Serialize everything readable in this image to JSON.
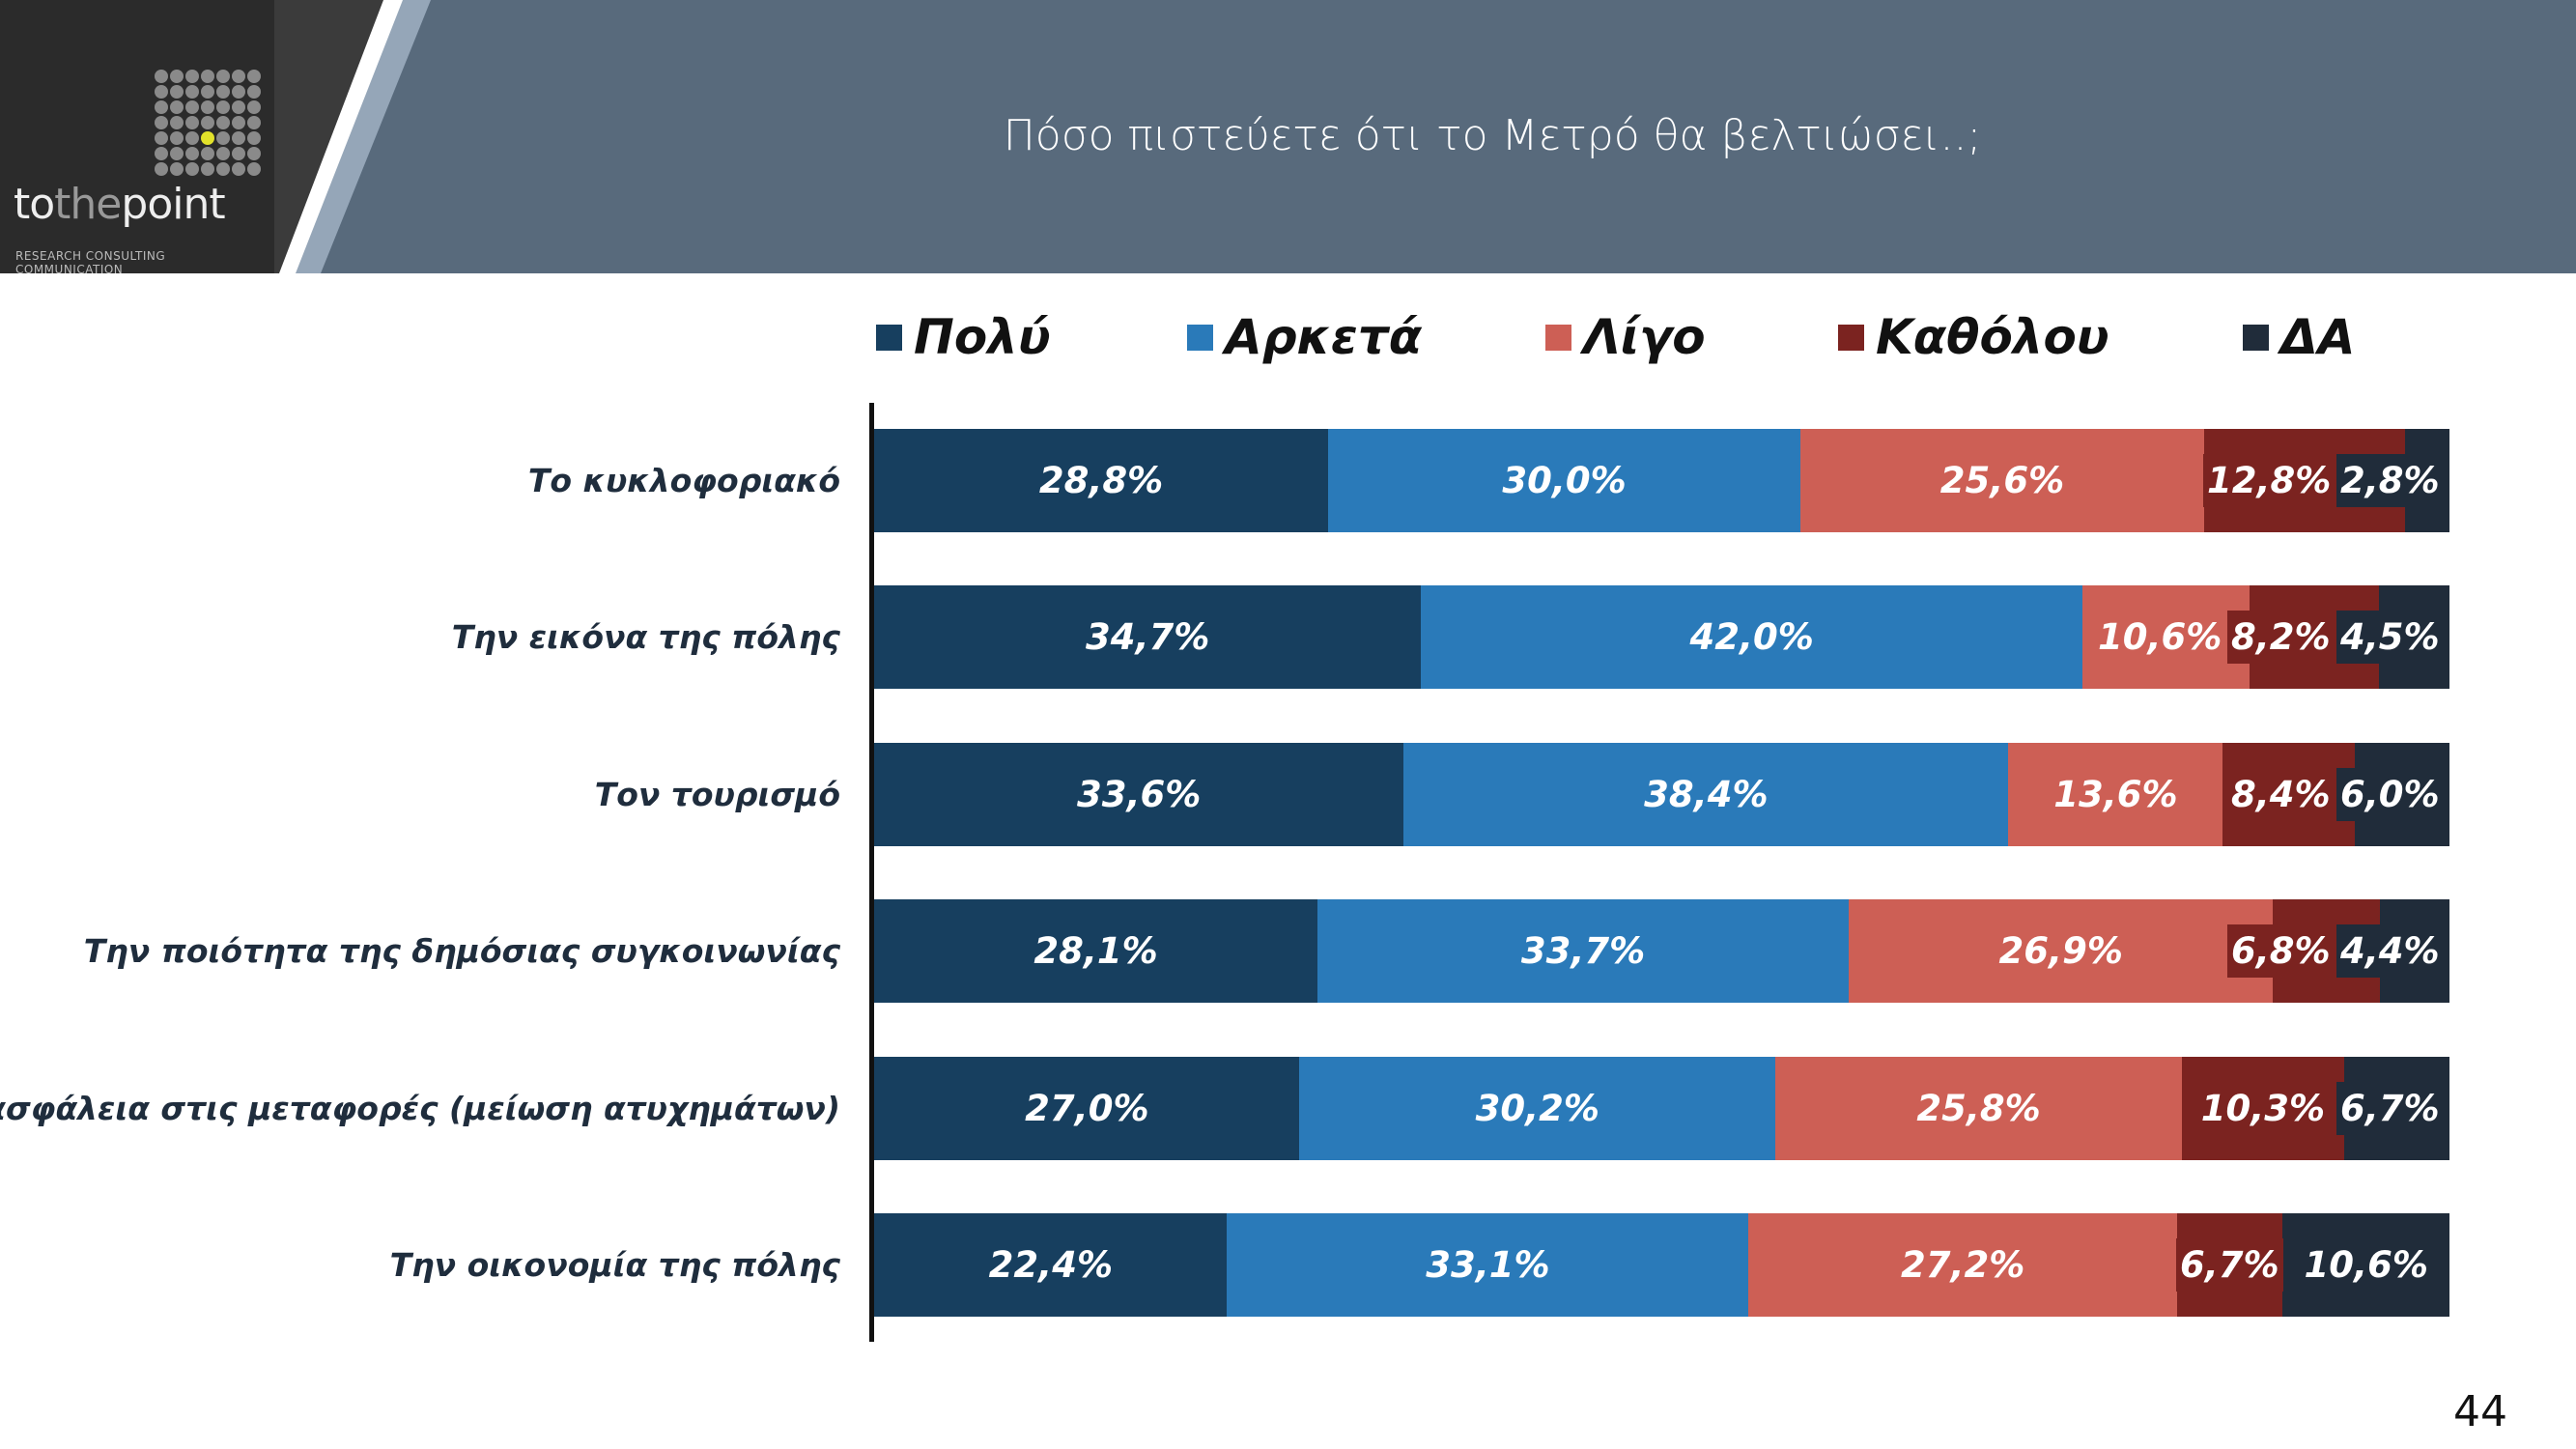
{
  "header": {
    "title": "Πόσο πιστεύετε ότι το Μετρό θα βελτιώσει..;",
    "logo_text": "tothepoint",
    "logo_tagline": "RESEARCH  CONSULTING  COMMUNICATION"
  },
  "page_number": "44",
  "chart_data": {
    "type": "bar",
    "orientation": "horizontal",
    "stacked": true,
    "xlim": [
      0,
      100
    ],
    "grid": false,
    "legend_position": "top",
    "title": "Πόσο πιστεύετε ότι το Μετρό θα βελτιώσει..;",
    "categories": [
      "Το κυκλοφοριακό",
      "Την εικόνα της πόλης",
      "Τον τουρισμό",
      "Την ποιότητα της δημόσιας συγκοινωνίας",
      "Την ασφάλεια στις μεταφορές (μείωση ατυχημάτων)",
      "Την οικονομία της πόλης"
    ],
    "series": [
      {
        "name": "Πολύ",
        "color": "#173f5f",
        "values": [
          28.8,
          34.7,
          33.6,
          28.1,
          27.0,
          22.4
        ],
        "labels": [
          "28,8%",
          "34,7%",
          "33,6%",
          "28,1%",
          "27,0%",
          "22,4%"
        ]
      },
      {
        "name": "Αρκετά",
        "color": "#2a7ab9",
        "values": [
          30.0,
          42.0,
          38.4,
          33.7,
          30.2,
          33.1
        ],
        "labels": [
          "30,0%",
          "42,0%",
          "38,4%",
          "33,7%",
          "30,2%",
          "33,1%"
        ]
      },
      {
        "name": "Λίγο",
        "color": "#cd5f55",
        "values": [
          25.6,
          10.6,
          13.6,
          26.9,
          25.8,
          27.2
        ],
        "labels": [
          "25,6%",
          "10,6%",
          "13,6%",
          "26,9%",
          "25,8%",
          "27,2%"
        ]
      },
      {
        "name": "Καθόλου",
        "color": "#7b2320",
        "values": [
          12.8,
          8.2,
          8.4,
          6.8,
          10.3,
          6.7
        ],
        "labels": [
          "12,8%",
          "8,2%",
          "8,4%",
          "6,8%",
          "10,3%",
          "6,7%"
        ]
      },
      {
        "name": "ΔΑ",
        "color": "#202c3a",
        "values": [
          2.8,
          4.5,
          6.0,
          4.4,
          6.7,
          10.6
        ],
        "labels": [
          "2,8%",
          "4,5%",
          "6,0%",
          "4,4%",
          "6,7%",
          "10,6%"
        ]
      }
    ]
  }
}
